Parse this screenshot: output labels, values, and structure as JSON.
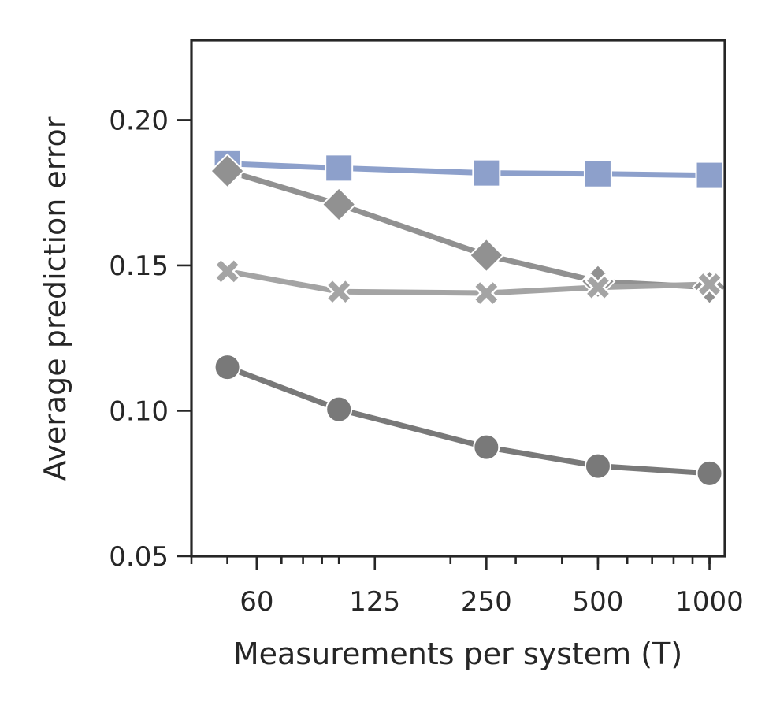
{
  "chart_data": {
    "type": "line",
    "xscale": "log",
    "xlabel": "Measurements per system (T)",
    "ylabel": "Average prediction error",
    "xlim": [
      40,
      1100
    ],
    "ylim": [
      0.05,
      0.2275
    ],
    "x_ticks": [
      60,
      125,
      250,
      500,
      1000
    ],
    "x_tick_labels": [
      "60",
      "125",
      "250",
      "500",
      "1000"
    ],
    "y_ticks": [
      0.05,
      0.1,
      0.15,
      0.2
    ],
    "y_tick_labels": [
      "0.05",
      "0.10",
      "0.15",
      "0.20"
    ],
    "grid": false,
    "legend": "none",
    "x": [
      50,
      100,
      250,
      500,
      1000
    ],
    "series": [
      {
        "marker": "square",
        "color": "#8da0cb",
        "values": [
          0.185,
          0.1835,
          0.1818,
          0.1815,
          0.181
        ]
      },
      {
        "marker": "diamond",
        "color": "#919191",
        "values": [
          0.1825,
          0.171,
          0.1535,
          0.1445,
          0.1425
        ]
      },
      {
        "marker": "x",
        "color": "#a4a4a4",
        "values": [
          0.148,
          0.141,
          0.1405,
          0.1425,
          0.1435
        ]
      },
      {
        "marker": "circle",
        "color": "#797979",
        "values": [
          0.115,
          0.1005,
          0.0875,
          0.081,
          0.0785
        ]
      }
    ]
  }
}
